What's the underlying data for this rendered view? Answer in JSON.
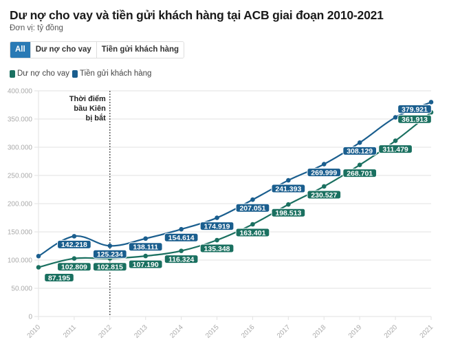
{
  "header": {
    "title": "Dư nợ cho vay và tiền gửi khách hàng tại ACB giai đoạn 2010-2021",
    "subtitle": "Đơn vị: tỷ đồng"
  },
  "filters": {
    "buttons": [
      {
        "label": "All",
        "active": true
      },
      {
        "label": "Dư nợ cho vay",
        "active": false
      },
      {
        "label": "Tiền gửi khách hàng",
        "active": false
      }
    ]
  },
  "colors": {
    "loans": "#1a7060",
    "deposits": "#1a5e8e",
    "button_active": "#2a7ab5",
    "grid": "#e6e6e6"
  },
  "chart_data": {
    "type": "line",
    "title": "Dư nợ cho vay và tiền gửi khách hàng tại ACB giai đoạn 2010-2021",
    "subtitle": "Đơn vị: tỷ đồng",
    "xlabel": "",
    "ylabel": "",
    "x": [
      "2010",
      "2011",
      "2012",
      "2013",
      "2014",
      "2015",
      "2016",
      "2017",
      "2018",
      "2019",
      "2020",
      "2021"
    ],
    "ylim": [
      0,
      400000
    ],
    "yticks": [
      0,
      50000,
      100000,
      150000,
      200000,
      250000,
      300000,
      350000,
      400000
    ],
    "ytick_labels": [
      "0",
      "50.000",
      "100.000",
      "150.000",
      "200.000",
      "250.000",
      "300.000",
      "350.000",
      "400.000"
    ],
    "grid": true,
    "legend": "top-left",
    "series": [
      {
        "name": "Dư nợ cho vay",
        "color": "#1a7060",
        "values": [
          87195,
          102809,
          102815,
          107190,
          116324,
          135348,
          163401,
          198513,
          230527,
          268701,
          311479,
          361913
        ],
        "labels": [
          "87.195",
          "102.809",
          "102.815",
          "107.190",
          "116.324",
          "135.348",
          "163.401",
          "198.513",
          "230.527",
          "268.701",
          "311.479",
          "361.913"
        ]
      },
      {
        "name": "Tiền gửi khách hàng",
        "color": "#1a5e8e",
        "values": [
          107000,
          142218,
          125234,
          138111,
          154614,
          174919,
          207051,
          241393,
          269999,
          308129,
          353000,
          379921
        ],
        "labels": [
          null,
          "142.218",
          "125.234",
          "138.111",
          "154.614",
          "174.919",
          "207.051",
          "241.393",
          "269.999",
          "308.129",
          null,
          "379.921"
        ]
      }
    ],
    "annotations": [
      {
        "x": "2012",
        "lines": [
          "Thời điểm",
          "bầu Kiên",
          "bị bắt"
        ]
      }
    ]
  }
}
